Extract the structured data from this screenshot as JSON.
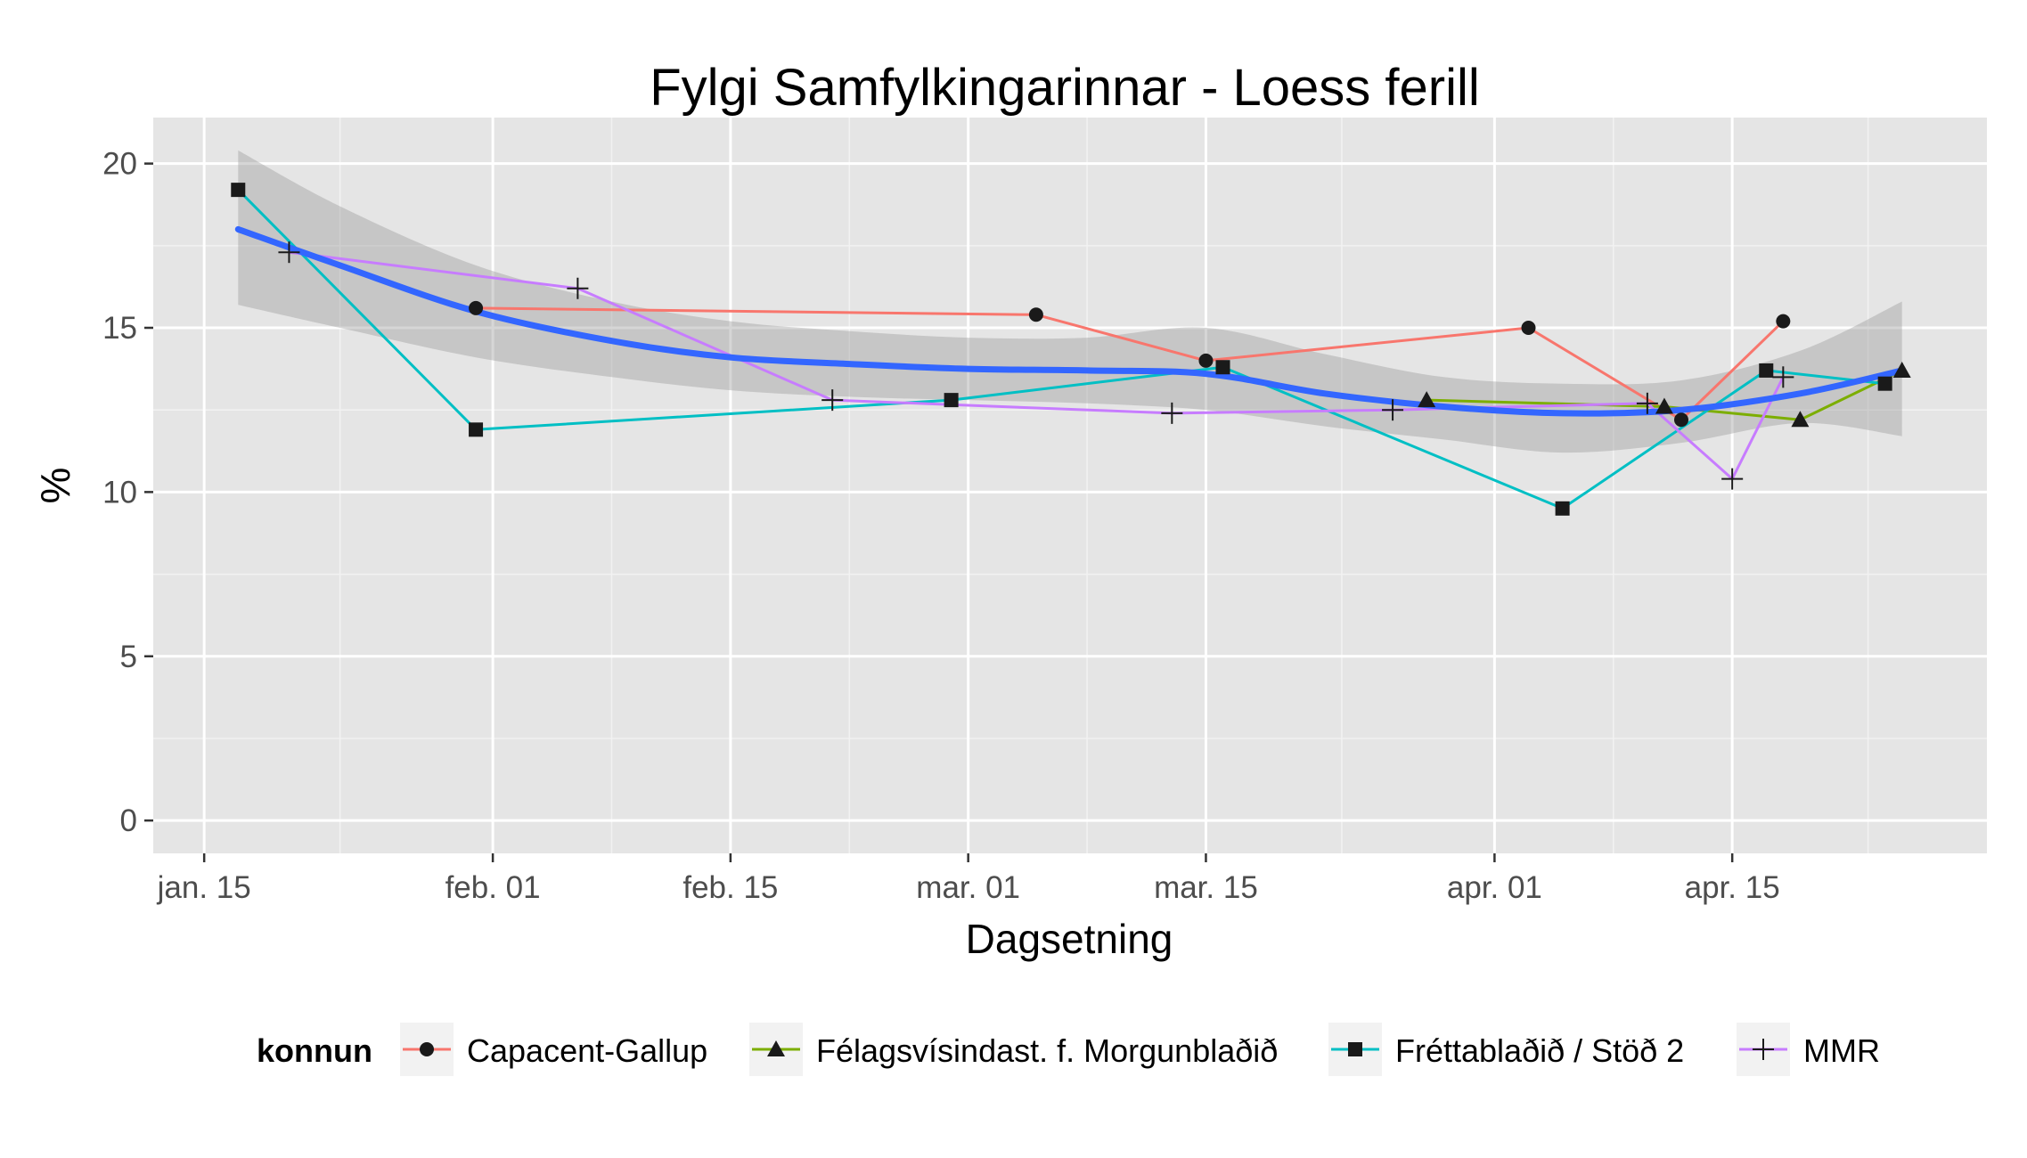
{
  "chart_data": {
    "type": "line",
    "title": "Fylgi Samfylkingarinnar - Loess ferill",
    "xlabel": "Dagsetning",
    "ylabel": "%",
    "x_axis": {
      "type": "date",
      "domain": [
        "2013-01-12",
        "2013-04-30"
      ],
      "ticks": [
        {
          "date": "2013-01-15",
          "label": "jan. 15"
        },
        {
          "date": "2013-02-01",
          "label": "feb. 01"
        },
        {
          "date": "2013-02-15",
          "label": "feb. 15"
        },
        {
          "date": "2013-03-01",
          "label": "mar. 01"
        },
        {
          "date": "2013-03-15",
          "label": "mar. 15"
        },
        {
          "date": "2013-04-01",
          "label": "apr. 01"
        },
        {
          "date": "2013-04-15",
          "label": "apr. 15"
        }
      ],
      "minor_ticks": [
        "2013-01-23",
        "2013-02-08",
        "2013-02-22",
        "2013-03-08",
        "2013-03-23",
        "2013-04-08",
        "2013-04-23"
      ]
    },
    "y_axis": {
      "ylim": [
        -1,
        21.4
      ],
      "ticks": [
        {
          "value": 0,
          "label": "0"
        },
        {
          "value": 5,
          "label": "5"
        },
        {
          "value": 10,
          "label": "10"
        },
        {
          "value": 15,
          "label": "15"
        },
        {
          "value": 20,
          "label": "20"
        }
      ],
      "minor_ticks": [
        2.5,
        7.5,
        12.5,
        17.5
      ]
    },
    "grid": true,
    "legend": {
      "title": "konnun",
      "position": "bottom"
    },
    "series": [
      {
        "name": "Capacent-Gallup",
        "color": "#f8766d",
        "marker": "circle",
        "points": [
          {
            "x": "2013-01-31",
            "y": 15.6
          },
          {
            "x": "2013-03-05",
            "y": 15.4
          },
          {
            "x": "2013-03-15",
            "y": 14.0
          },
          {
            "x": "2013-04-03",
            "y": 15.0
          },
          {
            "x": "2013-04-12",
            "y": 12.2
          },
          {
            "x": "2013-04-18",
            "y": 15.2
          }
        ]
      },
      {
        "name": "Félagsvísindast. f. Morgunblaðið",
        "color": "#7cae00",
        "marker": "triangle",
        "points": [
          {
            "x": "2013-03-28",
            "y": 12.8
          },
          {
            "x": "2013-04-11",
            "y": 12.6
          },
          {
            "x": "2013-04-19",
            "y": 12.2
          },
          {
            "x": "2013-04-25",
            "y": 13.7
          }
        ]
      },
      {
        "name": "Fréttablaðið / Stöð 2",
        "color": "#00bfc4",
        "marker": "square",
        "points": [
          {
            "x": "2013-01-17",
            "y": 19.2
          },
          {
            "x": "2013-01-31",
            "y": 11.9
          },
          {
            "x": "2013-02-28",
            "y": 12.8
          },
          {
            "x": "2013-03-16",
            "y": 13.8
          },
          {
            "x": "2013-04-05",
            "y": 9.5
          },
          {
            "x": "2013-04-17",
            "y": 13.7
          },
          {
            "x": "2013-04-24",
            "y": 13.3
          }
        ]
      },
      {
        "name": "MMR",
        "color": "#c77cff",
        "marker": "cross",
        "points": [
          {
            "x": "2013-01-20",
            "y": 17.3
          },
          {
            "x": "2013-02-06",
            "y": 16.2
          },
          {
            "x": "2013-02-21",
            "y": 12.8
          },
          {
            "x": "2013-03-13",
            "y": 12.4
          },
          {
            "x": "2013-03-26",
            "y": 12.5
          },
          {
            "x": "2013-04-10",
            "y": 12.7
          },
          {
            "x": "2013-04-15",
            "y": 10.4
          },
          {
            "x": "2013-04-18",
            "y": 13.5
          }
        ]
      }
    ],
    "loess": {
      "color": "#3366ff",
      "band_color": "#999999",
      "points": [
        {
          "x": "2013-01-17",
          "y": 18.0,
          "lower": 15.7,
          "upper": 20.4
        },
        {
          "x": "2013-01-23",
          "y": 16.9,
          "lower": 15.0,
          "upper": 18.7
        },
        {
          "x": "2013-01-31",
          "y": 15.5,
          "lower": 14.1,
          "upper": 16.9
        },
        {
          "x": "2013-02-08",
          "y": 14.6,
          "lower": 13.5,
          "upper": 15.8
        },
        {
          "x": "2013-02-15",
          "y": 14.1,
          "lower": 13.1,
          "upper": 15.2
        },
        {
          "x": "2013-02-22",
          "y": 13.9,
          "lower": 12.9,
          "upper": 14.9
        },
        {
          "x": "2013-03-01",
          "y": 13.75,
          "lower": 12.8,
          "upper": 14.7
        },
        {
          "x": "2013-03-08",
          "y": 13.7,
          "lower": 12.7,
          "upper": 14.7
        },
        {
          "x": "2013-03-15",
          "y": 13.6,
          "lower": 12.5,
          "upper": 15.0
        },
        {
          "x": "2013-03-22",
          "y": 13.0,
          "lower": 12.0,
          "upper": 14.2
        },
        {
          "x": "2013-03-29",
          "y": 12.6,
          "lower": 11.6,
          "upper": 13.5
        },
        {
          "x": "2013-04-05",
          "y": 12.4,
          "lower": 11.2,
          "upper": 13.3
        },
        {
          "x": "2013-04-12",
          "y": 12.5,
          "lower": 11.5,
          "upper": 13.4
        },
        {
          "x": "2013-04-19",
          "y": 13.0,
          "lower": 12.1,
          "upper": 14.3
        },
        {
          "x": "2013-04-25",
          "y": 13.7,
          "lower": 11.7,
          "upper": 15.8
        }
      ]
    }
  }
}
